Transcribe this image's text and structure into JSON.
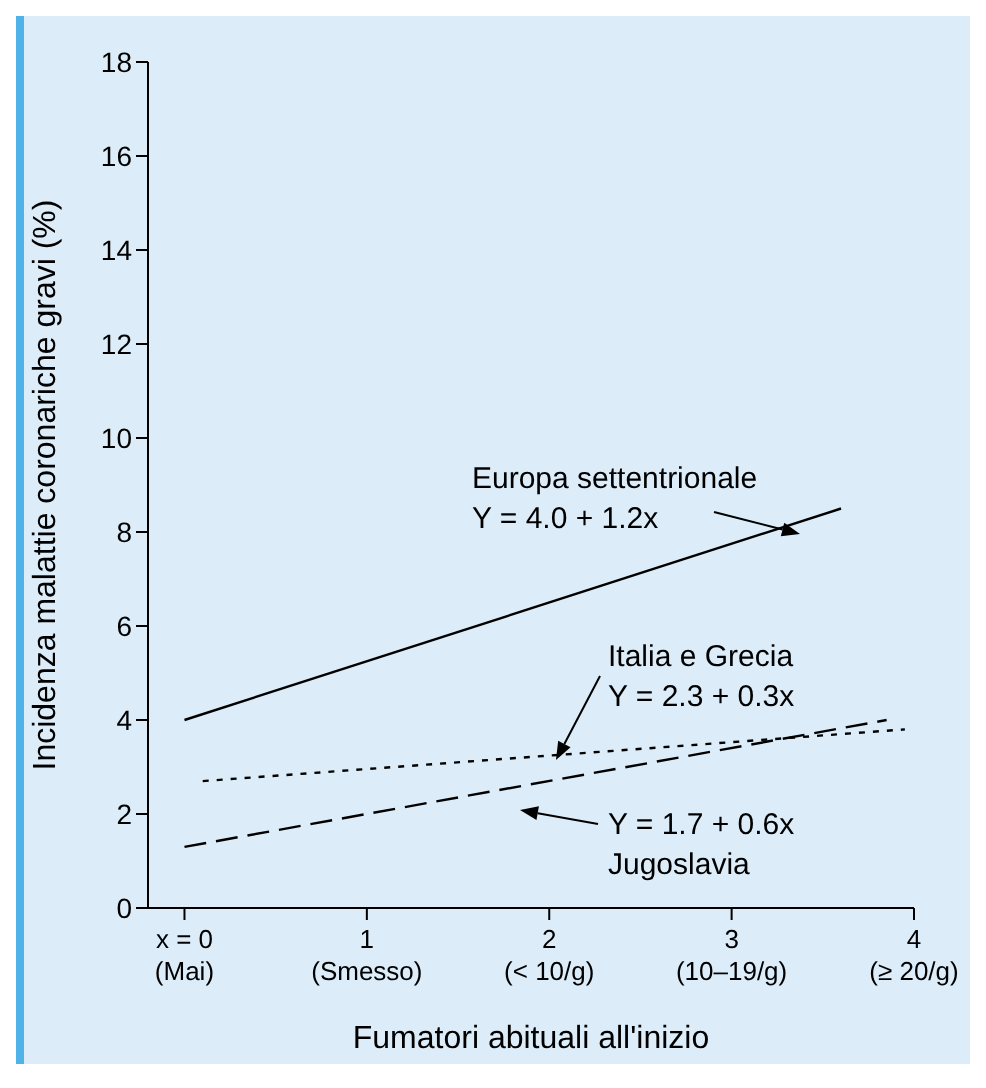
{
  "chart_data": {
    "type": "line",
    "xlabel": "Fumatori abituali all'inizio",
    "ylabel": "Incidenza malattie coronariche gravi (%)",
    "xlim": [
      -0.2,
      4
    ],
    "xticks": [
      {
        "value": 0,
        "label": "x = 0\n(Mai)"
      },
      {
        "value": 1,
        "label": "1\n(Smesso)"
      },
      {
        "value": 2,
        "label": "2\n(< 10/g)"
      },
      {
        "value": 3,
        "label": "3\n(10–19/g)"
      },
      {
        "value": 4,
        "label": "4\n(≥ 20/g)"
      }
    ],
    "ylim": [
      0,
      18
    ],
    "yticks": [
      0,
      2,
      4,
      6,
      8,
      10,
      12,
      14,
      16,
      18
    ],
    "grid": false,
    "legend": false,
    "marker": "none",
    "series": [
      {
        "name": "Europa settentrionale",
        "color": "#000000",
        "line_style": "solid",
        "x": [
          0,
          3.6
        ],
        "values": [
          4.0,
          8.5
        ]
      },
      {
        "name": "Italia e Grecia",
        "color": "#000000",
        "line_style": "dotted",
        "x": [
          0.1,
          3.95
        ],
        "values": [
          2.7,
          3.8
        ]
      },
      {
        "name": "Jugoslavia",
        "color": "#000000",
        "line_style": "dashed",
        "x": [
          0,
          3.85
        ],
        "values": [
          1.3,
          4.0
        ]
      }
    ],
    "annotations": [
      "Y = 4.0 + 1.2x",
      "Y = 2.3 + 0.3x",
      "Y = 1.7 + 0.6x"
    ]
  }
}
